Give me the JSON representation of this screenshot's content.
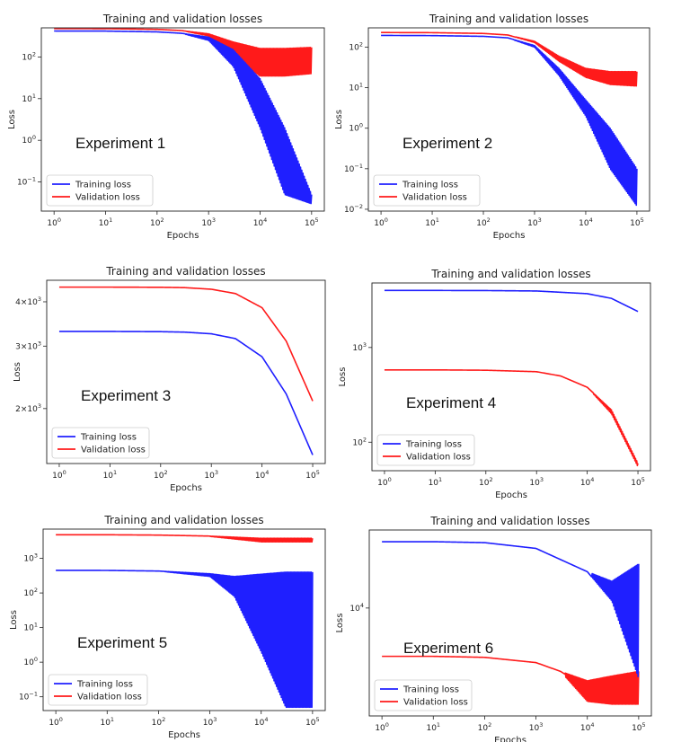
{
  "figure": {
    "title": "Training and validation losses",
    "xlabel": "Epochs",
    "ylabel": "Loss",
    "legend": [
      "Training loss",
      "Validation loss"
    ]
  },
  "colors": {
    "training": "#1f1fff",
    "validation": "#ff1a1a"
  },
  "chart_data": [
    {
      "type": "line",
      "experiment_label": "Experiment 1",
      "title": "Training and validation losses",
      "xlabel": "Epochs",
      "ylabel": "Loss",
      "x_scale": "log",
      "y_scale": "log",
      "xlim": [
        1,
        100000
      ],
      "ylim": [
        0.02,
        500
      ],
      "x_ticks": [
        "10^0",
        "10^1",
        "10^2",
        "10^3",
        "10^4",
        "10^5"
      ],
      "y_ticks": [
        "10^-1",
        "10^0",
        "10^1",
        "10^2"
      ],
      "legend_position": "lower-left",
      "series": [
        {
          "name": "Training loss",
          "x": [
            1,
            10,
            100,
            300,
            1000,
            3000,
            10000,
            30000,
            100000
          ],
          "values": [
            420,
            418,
            400,
            370,
            300,
            150,
            30,
            2,
            0.05
          ],
          "noise_min": [
            420,
            418,
            400,
            370,
            250,
            60,
            2,
            0.05,
            0.03
          ]
        },
        {
          "name": "Validation loss",
          "x": [
            1,
            10,
            100,
            300,
            1000,
            3000,
            10000,
            30000,
            100000
          ],
          "values": [
            480,
            478,
            460,
            430,
            350,
            200,
            90,
            80,
            80
          ],
          "noise_min": [
            480,
            478,
            460,
            430,
            320,
            100,
            35,
            35,
            40
          ],
          "noise_max": [
            480,
            478,
            460,
            430,
            360,
            230,
            160,
            160,
            170
          ]
        }
      ]
    },
    {
      "type": "line",
      "experiment_label": "Experiment 2",
      "title": "Training and validation losses",
      "xlabel": "Epochs",
      "ylabel": "Loss",
      "x_scale": "log",
      "y_scale": "log",
      "xlim": [
        1,
        100000
      ],
      "ylim": [
        0.009,
        300
      ],
      "x_ticks": [
        "10^0",
        "10^1",
        "10^2",
        "10^3",
        "10^4",
        "10^5"
      ],
      "y_ticks": [
        "10^-2",
        "10^-1",
        "10^0",
        "10^1",
        "10^2"
      ],
      "legend_position": "lower-left",
      "series": [
        {
          "name": "Training loss",
          "x": [
            1,
            10,
            100,
            300,
            1000,
            3000,
            10000,
            30000,
            100000
          ],
          "values": [
            195,
            193,
            185,
            170,
            110,
            30,
            5,
            1,
            0.1
          ],
          "noise_min": [
            195,
            193,
            185,
            170,
            100,
            20,
            2,
            0.1,
            0.012
          ]
        },
        {
          "name": "Validation loss",
          "x": [
            1,
            10,
            100,
            300,
            1000,
            3000,
            10000,
            30000,
            100000
          ],
          "values": [
            230,
            228,
            218,
            200,
            130,
            45,
            18,
            12,
            11
          ],
          "noise_max": [
            230,
            228,
            218,
            200,
            140,
            60,
            30,
            25,
            25
          ]
        }
      ]
    },
    {
      "type": "line",
      "experiment_label": "Experiment 3",
      "title": "Training and validation losses",
      "xlabel": "Epochs",
      "ylabel": "Loss",
      "x_scale": "log",
      "y_scale": "log",
      "xlim": [
        1,
        100000
      ],
      "ylim": [
        1400,
        4600
      ],
      "x_ticks": [
        "10^0",
        "10^1",
        "10^2",
        "10^3",
        "10^4",
        "10^5"
      ],
      "y_ticks": [
        "2×10^3",
        "3×10^3",
        "4×10^3"
      ],
      "legend_position": "lower-left",
      "series": [
        {
          "name": "Training loss",
          "x": [
            1,
            10,
            100,
            300,
            1000,
            3000,
            10000,
            30000,
            100000
          ],
          "values": [
            3300,
            3300,
            3295,
            3285,
            3250,
            3150,
            2800,
            2200,
            1480
          ]
        },
        {
          "name": "Validation loss",
          "x": [
            1,
            10,
            100,
            300,
            1000,
            3000,
            10000,
            30000,
            100000
          ],
          "values": [
            4400,
            4400,
            4395,
            4385,
            4340,
            4220,
            3850,
            3100,
            2100
          ]
        }
      ]
    },
    {
      "type": "line",
      "experiment_label": "Experiment 4",
      "title": "Training and validation losses",
      "xlabel": "Epochs",
      "ylabel": "Loss",
      "x_scale": "log",
      "y_scale": "log",
      "xlim": [
        1,
        100000
      ],
      "ylim": [
        50,
        4800
      ],
      "x_ticks": [
        "10^0",
        "10^1",
        "10^2",
        "10^3",
        "10^4",
        "10^5"
      ],
      "y_ticks": [
        "10^2",
        "10^3"
      ],
      "legend_position": "lower-left",
      "series": [
        {
          "name": "Training loss",
          "x": [
            1,
            10,
            100,
            1000,
            10000,
            30000,
            100000
          ],
          "values": [
            4000,
            4000,
            3990,
            3950,
            3700,
            3300,
            2400
          ]
        },
        {
          "name": "Validation loss",
          "x": [
            1,
            10,
            100,
            1000,
            3000,
            10000,
            30000,
            100000
          ],
          "values": [
            580,
            580,
            575,
            555,
            500,
            380,
            220,
            60
          ],
          "noise_min": [
            580,
            580,
            575,
            555,
            500,
            380,
            200,
            55
          ]
        }
      ]
    },
    {
      "type": "line",
      "experiment_label": "Experiment 5",
      "title": "Training and validation losses",
      "xlabel": "Epochs",
      "ylabel": "Loss",
      "x_scale": "log",
      "y_scale": "log",
      "xlim": [
        1,
        100000
      ],
      "ylim": [
        0.04,
        7000
      ],
      "x_ticks": [
        "10^0",
        "10^1",
        "10^2",
        "10^3",
        "10^4",
        "10^5"
      ],
      "y_ticks": [
        "10^-1",
        "10^0",
        "10^1",
        "10^2",
        "10^3"
      ],
      "legend_position": "lower-left",
      "series": [
        {
          "name": "Training loss",
          "x": [
            1,
            10,
            100,
            1000,
            3000,
            10000,
            30000,
            100000
          ],
          "values": [
            450,
            448,
            430,
            350,
            250,
            150,
            150,
            150
          ],
          "noise_min": [
            450,
            448,
            430,
            300,
            80,
            2,
            0.05,
            0.05
          ],
          "noise_max": [
            450,
            448,
            430,
            360,
            300,
            350,
            400,
            400
          ]
        },
        {
          "name": "Validation loss",
          "x": [
            1,
            10,
            100,
            1000,
            10000,
            100000
          ],
          "values": [
            4800,
            4800,
            4700,
            4400,
            3800,
            3800
          ],
          "noise_min": [
            4800,
            4800,
            4700,
            4300,
            3000,
            3000
          ]
        }
      ]
    },
    {
      "type": "line",
      "experiment_label": "Experiment 6",
      "title": "Training and validation losses",
      "xlabel": "Epochs",
      "ylabel": "Loss",
      "x_scale": "log",
      "y_scale": "log",
      "xlim": [
        1,
        100000
      ],
      "ylim": [
        4800,
        17000
      ],
      "x_ticks": [
        "10^0",
        "10^1",
        "10^2",
        "10^3",
        "10^4",
        "10^5"
      ],
      "y_ticks": [
        "10^4"
      ],
      "legend_position": "lower-left",
      "series": [
        {
          "name": "Training loss",
          "x": [
            1,
            10,
            100,
            1000,
            10000,
            30000,
            100000
          ],
          "values": [
            15700,
            15700,
            15600,
            15000,
            12800,
            10500,
            6200
          ],
          "noise_max": [
            15700,
            15700,
            15600,
            15000,
            12800,
            12000,
            13500
          ]
        },
        {
          "name": "Validation loss",
          "x": [
            1,
            10,
            100,
            1000,
            3000,
            10000,
            30000,
            100000
          ],
          "values": [
            7200,
            7200,
            7150,
            6900,
            6500,
            5800,
            5800,
            6000
          ],
          "noise_min": [
            7200,
            7200,
            7150,
            6900,
            6500,
            5300,
            5200,
            5200
          ],
          "noise_max": [
            7200,
            7200,
            7150,
            6900,
            6500,
            6100,
            6300,
            6500
          ]
        }
      ]
    }
  ]
}
